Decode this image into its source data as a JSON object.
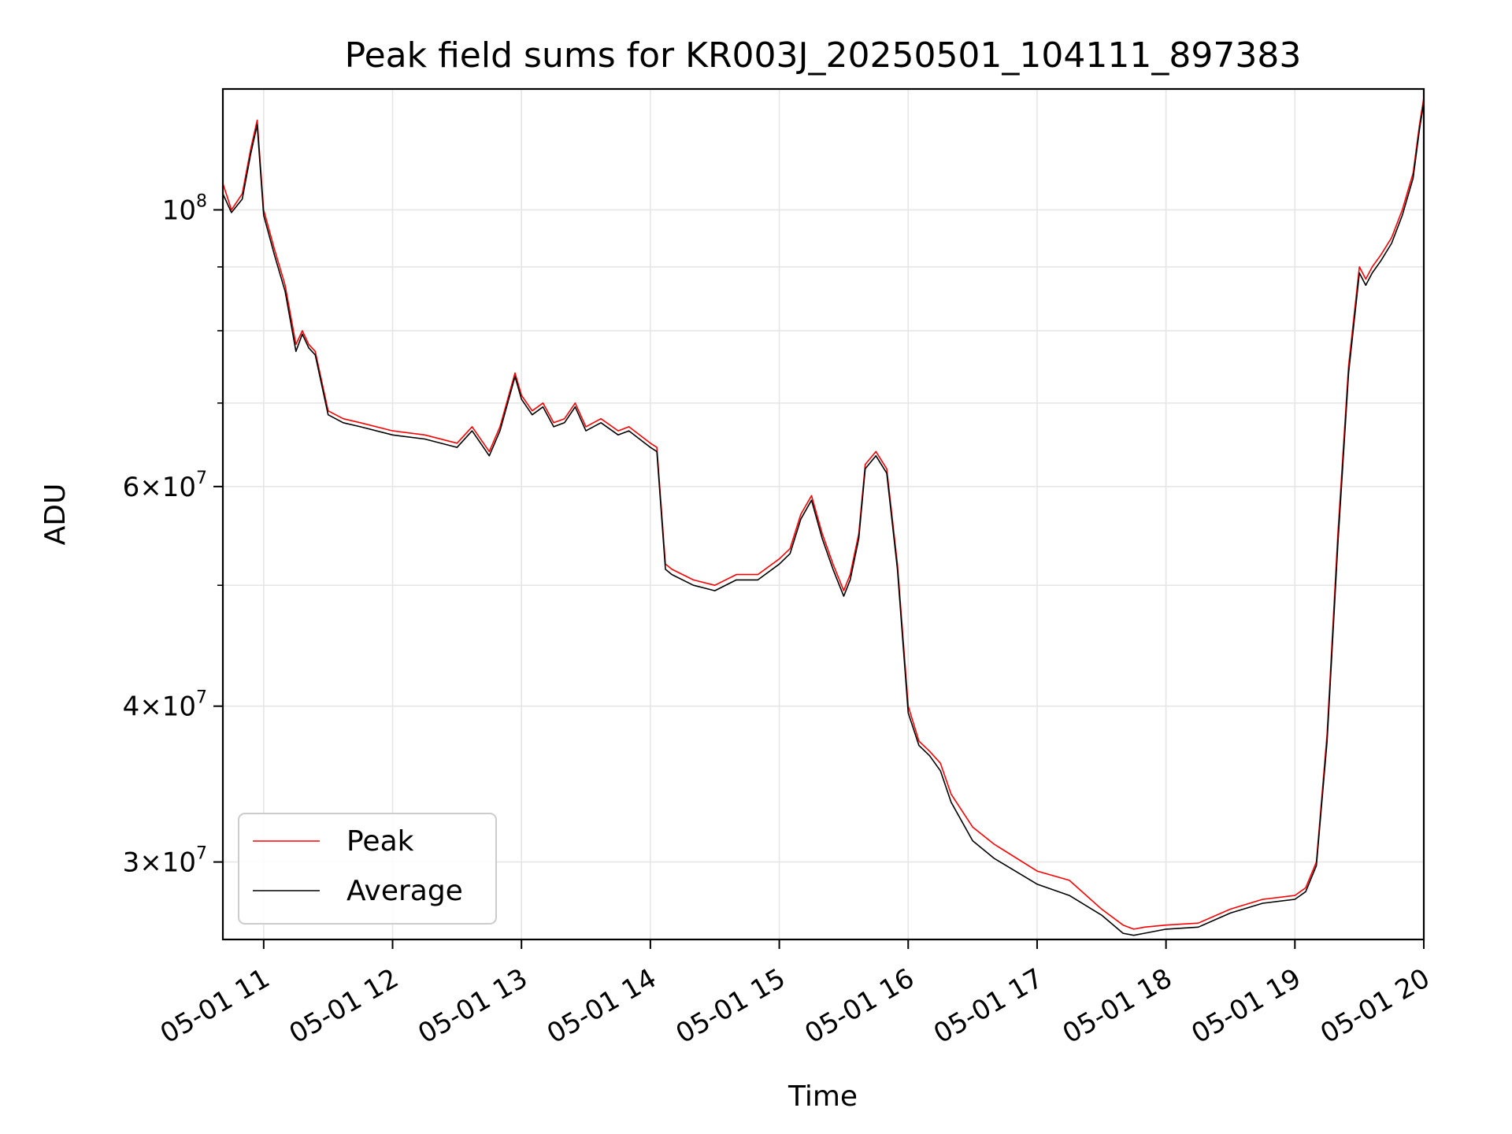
{
  "chart_data": {
    "type": "line",
    "title": "Peak field sums for KR003J_20250501_104111_897383",
    "xlabel": "Time",
    "ylabel": "ADU",
    "x_unit": "hour of 2025-05-01",
    "xlim": [
      "05-01 10:41",
      "05-01 20:00"
    ],
    "ylim": [
      26000000,
      125000000
    ],
    "y_scale": "log",
    "grid": true,
    "legend_position": "lower-left",
    "x_ticks": [
      "05-01 11",
      "05-01 12",
      "05-01 13",
      "05-01 14",
      "05-01 15",
      "05-01 16",
      "05-01 17",
      "05-01 18",
      "05-01 19",
      "05-01 20"
    ],
    "y_ticks": [
      {
        "value": 30000000,
        "coef": "3",
        "exp": "7"
      },
      {
        "value": 40000000,
        "coef": "4",
        "exp": "7"
      },
      {
        "value": 60000000,
        "coef": "6",
        "exp": "7"
      },
      {
        "value": 100000000,
        "coef": "",
        "exp": "8"
      }
    ],
    "y_minor_ticks": [
      50000000,
      70000000,
      80000000,
      90000000
    ],
    "series": [
      {
        "name": "Peak",
        "color": "#ff0000",
        "x": [
          "10:41",
          "10:45",
          "10:50",
          "10:54",
          "10:57",
          "11:00",
          "11:05",
          "11:10",
          "11:15",
          "11:18",
          "11:21",
          "11:24",
          "11:30",
          "11:37",
          "11:45",
          "12:00",
          "12:15",
          "12:30",
          "12:37",
          "12:45",
          "12:50",
          "12:57",
          "13:00",
          "13:05",
          "13:10",
          "13:15",
          "13:20",
          "13:25",
          "13:30",
          "13:37",
          "13:45",
          "13:50",
          "14:00",
          "14:03",
          "14:07",
          "14:10",
          "14:20",
          "14:30",
          "14:40",
          "14:50",
          "15:00",
          "15:05",
          "15:10",
          "15:15",
          "15:20",
          "15:25",
          "15:30",
          "15:33",
          "15:37",
          "15:40",
          "15:45",
          "15:50",
          "15:55",
          "16:00",
          "16:05",
          "16:10",
          "16:15",
          "16:20",
          "16:30",
          "16:40",
          "17:00",
          "17:15",
          "17:30",
          "17:40",
          "17:45",
          "17:50",
          "18:00",
          "18:15",
          "18:30",
          "18:45",
          "19:00",
          "19:05",
          "19:10",
          "19:15",
          "19:20",
          "19:25",
          "19:30",
          "19:33",
          "19:36",
          "19:40",
          "19:45",
          "19:50",
          "19:55",
          "19:58",
          "20:00"
        ],
        "y": [
          105000000,
          100000000,
          103000000,
          112000000,
          118000000,
          100000000,
          93000000,
          87000000,
          78000000,
          80000000,
          78000000,
          77000000,
          69000000,
          68000000,
          67500000,
          66500000,
          66000000,
          65000000,
          67000000,
          64000000,
          67000000,
          74000000,
          71000000,
          69000000,
          70000000,
          67500000,
          68000000,
          70000000,
          67000000,
          68000000,
          66500000,
          67000000,
          65000000,
          64500000,
          52000000,
          51500000,
          50500000,
          50000000,
          51000000,
          51000000,
          52500000,
          53500000,
          57000000,
          59000000,
          55000000,
          52000000,
          49500000,
          51000000,
          55000000,
          62500000,
          64000000,
          62000000,
          52000000,
          40000000,
          37500000,
          36800000,
          36000000,
          34000000,
          32000000,
          31000000,
          29500000,
          29000000,
          27500000,
          26700000,
          26500000,
          26600000,
          26700000,
          26800000,
          27500000,
          28000000,
          28200000,
          28600000,
          30000000,
          38000000,
          55000000,
          75000000,
          90000000,
          88000000,
          90000000,
          92000000,
          95000000,
          100000000,
          107000000,
          117000000,
          123000000
        ]
      },
      {
        "name": "Average",
        "color": "#000000",
        "x": [
          "10:41",
          "10:45",
          "10:50",
          "10:54",
          "10:57",
          "11:00",
          "11:05",
          "11:10",
          "11:15",
          "11:18",
          "11:21",
          "11:24",
          "11:30",
          "11:37",
          "11:45",
          "12:00",
          "12:15",
          "12:30",
          "12:37",
          "12:45",
          "12:50",
          "12:57",
          "13:00",
          "13:05",
          "13:10",
          "13:15",
          "13:20",
          "13:25",
          "13:30",
          "13:37",
          "13:45",
          "13:50",
          "14:00",
          "14:03",
          "14:07",
          "14:10",
          "14:20",
          "14:30",
          "14:40",
          "14:50",
          "15:00",
          "15:05",
          "15:10",
          "15:15",
          "15:20",
          "15:25",
          "15:30",
          "15:33",
          "15:37",
          "15:40",
          "15:45",
          "15:50",
          "15:55",
          "16:00",
          "16:05",
          "16:10",
          "16:15",
          "16:20",
          "16:30",
          "16:40",
          "17:00",
          "17:15",
          "17:30",
          "17:40",
          "17:45",
          "17:50",
          "18:00",
          "18:15",
          "18:30",
          "18:45",
          "19:00",
          "19:05",
          "19:10",
          "19:15",
          "19:20",
          "19:25",
          "19:30",
          "19:33",
          "19:36",
          "19:40",
          "19:45",
          "19:50",
          "19:55",
          "19:58",
          "20:00"
        ],
        "y": [
          103000000,
          99500000,
          102000000,
          111000000,
          117000000,
          99000000,
          92000000,
          86000000,
          77000000,
          79500000,
          77500000,
          76500000,
          68500000,
          67500000,
          67000000,
          66000000,
          65500000,
          64500000,
          66500000,
          63500000,
          66500000,
          73500000,
          70500000,
          68500000,
          69500000,
          67000000,
          67500000,
          69500000,
          66500000,
          67500000,
          66000000,
          66500000,
          64500000,
          64000000,
          51500000,
          51000000,
          50000000,
          49500000,
          50500000,
          50500000,
          52000000,
          53000000,
          56500000,
          58500000,
          54500000,
          51500000,
          49000000,
          50500000,
          54500000,
          62000000,
          63500000,
          61500000,
          51500000,
          39500000,
          37200000,
          36500000,
          35500000,
          33500000,
          31200000,
          30200000,
          28800000,
          28200000,
          27200000,
          26300000,
          26200000,
          26300000,
          26500000,
          26600000,
          27300000,
          27800000,
          28000000,
          28400000,
          29800000,
          37500000,
          54000000,
          74000000,
          89000000,
          87000000,
          89000000,
          91000000,
          94000000,
          99000000,
          106000000,
          116000000,
          122000000
        ]
      }
    ]
  }
}
